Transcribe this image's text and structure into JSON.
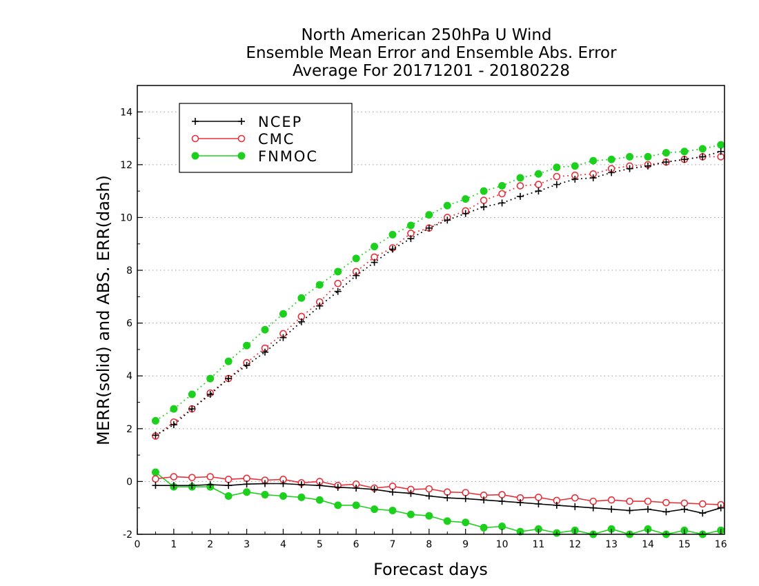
{
  "chart_data": {
    "type": "line",
    "title_lines": [
      "North American 250hPa U Wind",
      "Ensemble Mean Error and Ensemble Abs. Error",
      "Average For 20171201 - 20180228"
    ],
    "xlabel": "Forecast days",
    "ylabel": "MERR(solid) and ABS. ERR(dash)",
    "xlim": [
      0,
      16.1
    ],
    "ylim": [
      -2,
      15
    ],
    "xticks": [
      "0",
      "1",
      "2",
      "3",
      "4",
      "5",
      "6",
      "7",
      "8",
      "9",
      "10",
      "11",
      "12",
      "13",
      "14",
      "15",
      "16"
    ],
    "yticks": [
      "-2",
      "0",
      "2",
      "4",
      "6",
      "8",
      "10",
      "12",
      "14"
    ],
    "grid": true,
    "legend_position": "top-left",
    "x": [
      0.5,
      1,
      1.5,
      2,
      2.5,
      3,
      3.5,
      4,
      4.5,
      5,
      5.5,
      6,
      6.5,
      7,
      7.5,
      8,
      8.5,
      9,
      9.5,
      10,
      10.5,
      11,
      11.5,
      12,
      12.5,
      13,
      13.5,
      14,
      14.5,
      15,
      15.5,
      16
    ],
    "series": [
      {
        "name": "NCEP",
        "color": "#000000",
        "marker": "plus",
        "merr": [
          -0.15,
          -0.15,
          -0.15,
          -0.12,
          -0.15,
          -0.1,
          -0.08,
          -0.08,
          -0.12,
          -0.15,
          -0.22,
          -0.25,
          -0.3,
          -0.4,
          -0.45,
          -0.55,
          -0.62,
          -0.65,
          -0.7,
          -0.75,
          -0.8,
          -0.85,
          -0.9,
          -0.95,
          -1.0,
          -1.05,
          -1.1,
          -1.05,
          -1.15,
          -1.05,
          -1.2,
          -1.0
        ],
        "abs_err": [
          1.75,
          2.15,
          2.75,
          3.3,
          3.9,
          4.4,
          4.9,
          5.45,
          6.05,
          6.65,
          7.2,
          7.8,
          8.3,
          8.8,
          9.2,
          9.6,
          9.9,
          10.15,
          10.4,
          10.55,
          10.8,
          11.0,
          11.25,
          11.45,
          11.5,
          11.7,
          11.85,
          11.95,
          12.1,
          12.2,
          12.3,
          12.5
        ]
      },
      {
        "name": "CMC",
        "color": "#e8303a",
        "marker": "circle-open",
        "merr": [
          0.1,
          0.18,
          0.15,
          0.18,
          0.08,
          0.12,
          0.05,
          0.08,
          -0.05,
          0.0,
          -0.15,
          -0.1,
          -0.25,
          -0.18,
          -0.3,
          -0.28,
          -0.4,
          -0.42,
          -0.52,
          -0.5,
          -0.62,
          -0.6,
          -0.72,
          -0.62,
          -0.75,
          -0.7,
          -0.75,
          -0.75,
          -0.8,
          -0.82,
          -0.85,
          -0.88
        ],
        "abs_err": [
          1.72,
          2.25,
          2.75,
          3.35,
          3.9,
          4.5,
          5.05,
          5.6,
          6.25,
          6.8,
          7.5,
          7.95,
          8.5,
          8.85,
          9.4,
          9.6,
          10.0,
          10.25,
          10.65,
          10.9,
          11.2,
          11.25,
          11.55,
          11.6,
          11.65,
          11.85,
          11.95,
          12.0,
          12.1,
          12.2,
          12.3,
          12.3
        ]
      },
      {
        "name": "FNMOC",
        "color": "#1ed01e",
        "marker": "circle-filled",
        "merr": [
          0.35,
          -0.2,
          -0.2,
          -0.2,
          -0.55,
          -0.4,
          -0.5,
          -0.55,
          -0.6,
          -0.7,
          -0.9,
          -0.9,
          -1.05,
          -1.1,
          -1.25,
          -1.3,
          -1.5,
          -1.55,
          -1.75,
          -1.7,
          -1.9,
          -1.8,
          -1.95,
          -1.85,
          -2.0,
          -1.8,
          -2.0,
          -1.8,
          -2.0,
          -1.85,
          -2.0,
          -1.85
        ],
        "abs_err": [
          2.3,
          2.75,
          3.3,
          3.9,
          4.55,
          5.15,
          5.75,
          6.35,
          6.95,
          7.45,
          7.95,
          8.45,
          8.9,
          9.35,
          9.7,
          10.1,
          10.45,
          10.7,
          11.0,
          11.2,
          11.5,
          11.65,
          11.9,
          11.95,
          12.15,
          12.2,
          12.3,
          12.3,
          12.45,
          12.5,
          12.6,
          12.75
        ]
      }
    ]
  }
}
